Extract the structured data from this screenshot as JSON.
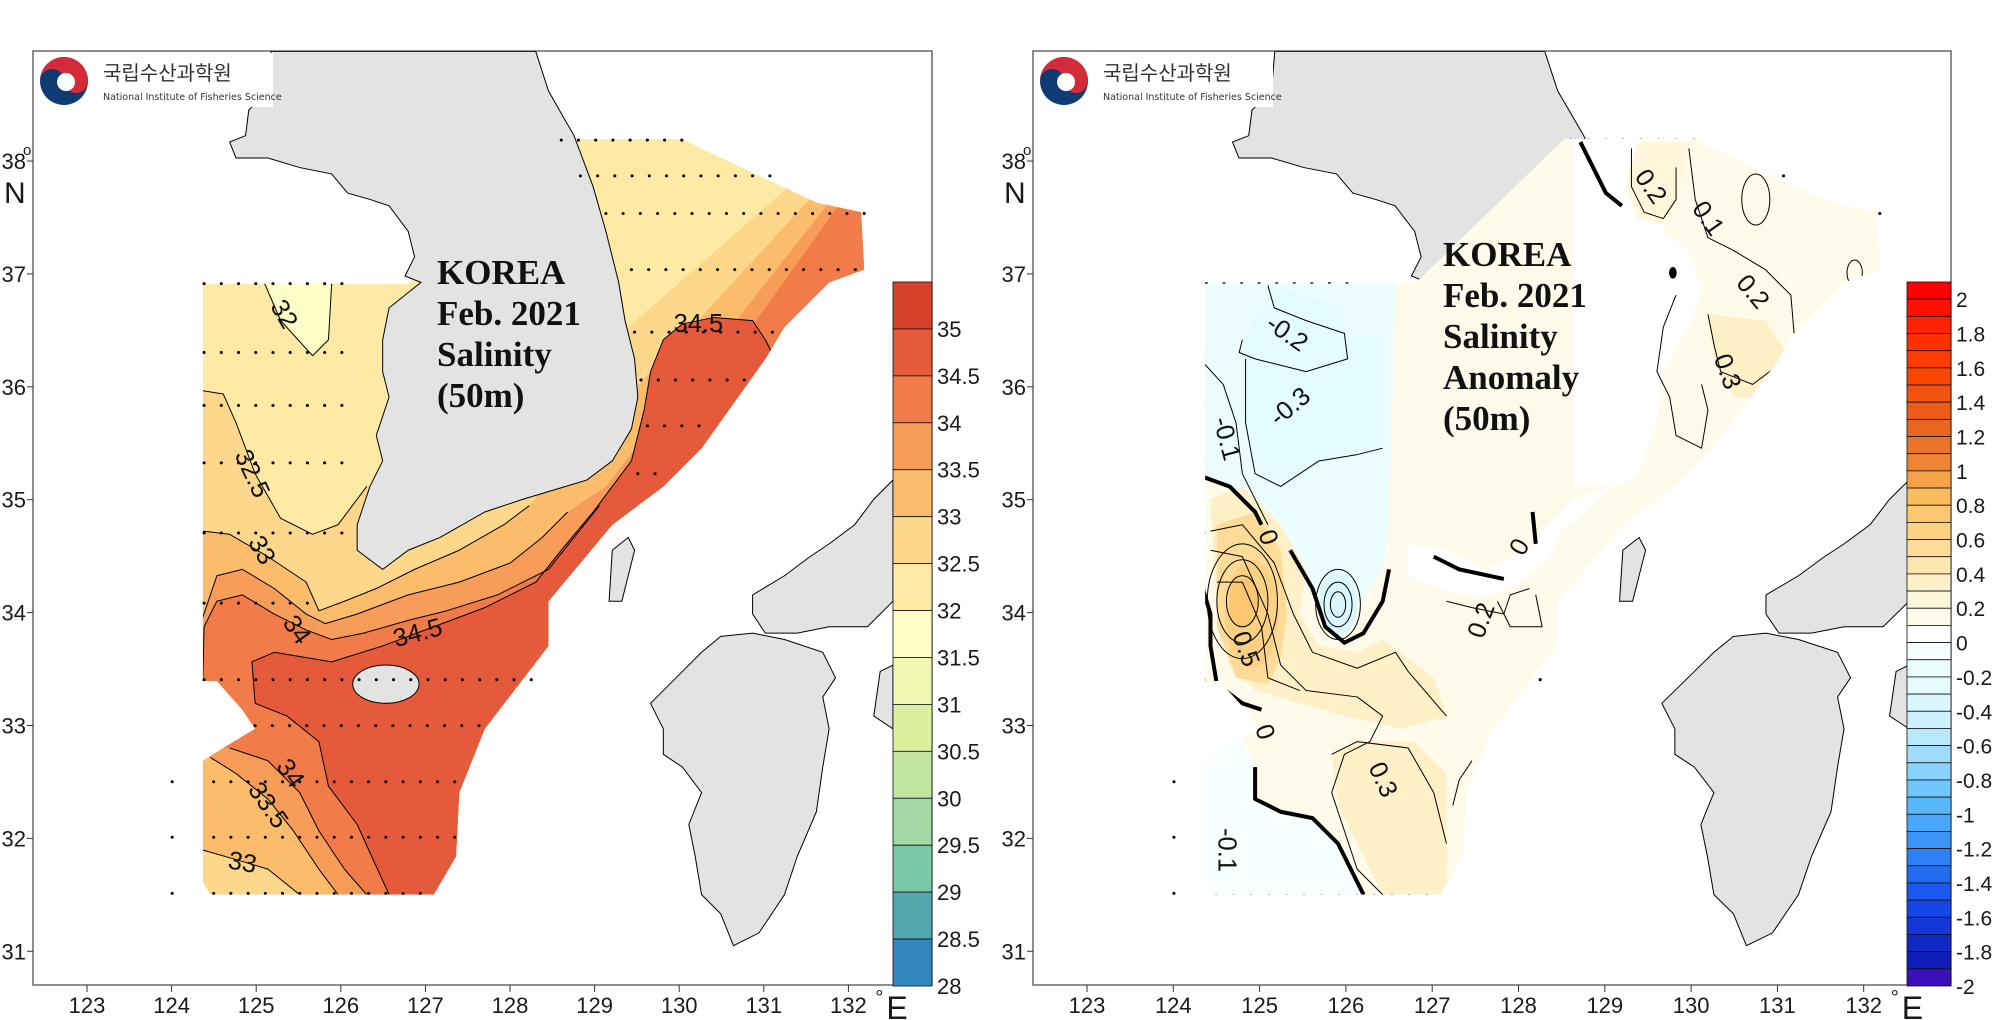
{
  "logo": {
    "korean": "국립수산과학원",
    "english": "National Institute of Fisheries Science",
    "colors": {
      "red": "#d52a3a",
      "blue": "#0d3b72"
    }
  },
  "axes": {
    "lon_ticks": [
      "123",
      "124",
      "125",
      "126",
      "127",
      "128",
      "129",
      "130",
      "131",
      "132"
    ],
    "lat_ticks": [
      "38",
      "37",
      "36",
      "35",
      "34",
      "33",
      "32",
      "31"
    ],
    "lon_degree": "°",
    "lat_degree": "o",
    "lon_unit": "E",
    "lat_unit": "N"
  },
  "colors": {
    "land": "#e3e3e3",
    "coastline": "#000000",
    "frame": "#444444"
  },
  "panels": [
    {
      "title_lines": [
        "KOREA",
        "Feb. 2021",
        "Salinity",
        "(50m)"
      ],
      "colorbar": {
        "labels": [
          "35",
          "34.5",
          "34",
          "33.5",
          "33",
          "32.5",
          "32",
          "31.5",
          "31",
          "30.5",
          "30",
          "29.5",
          "29",
          "28.5",
          "28"
        ],
        "colors": [
          "#d7402a",
          "#e55a3b",
          "#f27b4a",
          "#f89c5a",
          "#fbbc6c",
          "#fdd88c",
          "#feeaa4",
          "#ffffc8",
          "#eff7b2",
          "#dcef9c",
          "#c3e5a2",
          "#a2d9a4",
          "#78c9a8",
          "#52a8ad",
          "#3288bd"
        ]
      },
      "contour_labels": [
        "32",
        "32.5",
        "33",
        "34",
        "34.5",
        "34.5",
        "34",
        "33.5",
        "33"
      ]
    },
    {
      "title_lines": [
        "KOREA",
        "Feb. 2021",
        "Salinity",
        "Anomaly",
        "(50m)"
      ],
      "colorbar": {
        "labels": [
          "2",
          "1.8",
          "1.6",
          "1.4",
          "1.2",
          "1",
          "0.8",
          "0.6",
          "0.4",
          "0.2",
          "0",
          "-0.2",
          "-0.4",
          "-0.6",
          "-0.8",
          "-1",
          "-1.2",
          "-1.4",
          "-1.6",
          "-1.8",
          "-2"
        ],
        "colors": [
          "#ff0000",
          "#ff1200",
          "#ff2200",
          "#ff3000",
          "#ff3c00",
          "#f94700",
          "#f25210",
          "#ec5c18",
          "#e8661e",
          "#ec7428",
          "#f08433",
          "#f6a24a",
          "#fbbb5c",
          "#fdc670",
          "#fdd184",
          "#fedc98",
          "#fee6ae",
          "#fff0c8",
          "#fff6dc",
          "#fffbea",
          "#ffffff",
          "#f8ffff",
          "#ecfdff",
          "#e4fbff",
          "#daf6ff",
          "#ccf0ff",
          "#b8e8ff",
          "#a0dcff",
          "#88d2ff",
          "#70c6ff",
          "#58b8ff",
          "#48a8fb",
          "#3a94f8",
          "#2e80f5",
          "#226cf2",
          "#1a58ef",
          "#1446e8",
          "#1236d8",
          "#1028c8",
          "#0e1cb8",
          "#3a10b8"
        ]
      },
      "contour_labels": [
        "-0.2",
        "-0.3",
        "-0.1",
        "0",
        "0.5",
        "0",
        "0.3",
        "-0.1",
        "0.2",
        "0",
        "0.2",
        "0.1",
        "0.2",
        "0.3"
      ]
    }
  ]
}
